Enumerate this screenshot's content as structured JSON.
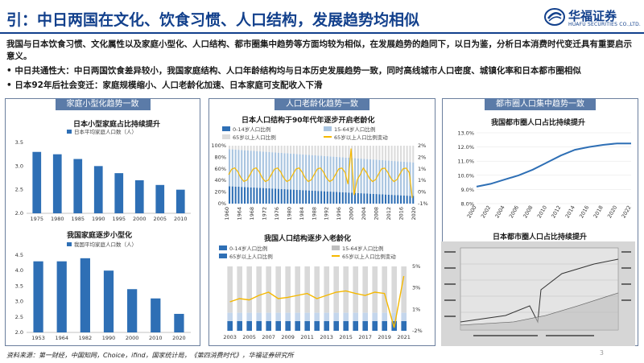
{
  "header": {
    "title": "引：中日两国在文化、饮食习惯、人口结构，发展趋势均相似",
    "logo_cn": "华福证券",
    "logo_en": "HUAFU SECURITIES CO.,LTD."
  },
  "intro": "我国与日本饮食习惯、文化属性以及家庭小型化、人口结构、都市圈集中趋势等方面均较为相似，在发展趋势的趋同下，以日为鉴，分析日本消费时代变迁具有重要启示意义。",
  "bullets": [
    "中日共通性大：中日两国饮食差异较小，我国家庭结构、人口年龄结构均与日本历史发展趋势一致，同时高线城市人口密度、城镇化率和日本都市圈相似",
    "日本92年后社会变迁：家庭规模缩小、人口老龄化加速、日本家庭可支配收入下滑"
  ],
  "panels": {
    "family": "家庭小型化趋势一致",
    "aging": "人口老龄化趋势一致",
    "metro": "都市圈人口集中趋势一致"
  },
  "chart_data": [
    {
      "type": "bar",
      "title": "日本小型家庭占比持续提升",
      "legend": "日本平均家庭人口数（人）",
      "categories": [
        "1975",
        "1980",
        "1985",
        "1990",
        "1995",
        "2000",
        "2005",
        "2010"
      ],
      "values": [
        3.3,
        3.25,
        3.15,
        3.0,
        2.85,
        2.7,
        2.6,
        2.5
      ],
      "ylim": [
        2.0,
        3.5
      ],
      "yticks": [
        "2.0",
        "2.5",
        "3.0",
        "3.5"
      ],
      "color": "#2e6fb5"
    },
    {
      "type": "bar",
      "title": "我国家庭逐步小型化",
      "legend": "我国平均家庭人口数（人）",
      "categories": [
        "1953",
        "1964",
        "1982",
        "1990",
        "2000",
        "2010",
        "2020"
      ],
      "values": [
        4.3,
        4.3,
        4.4,
        4.0,
        3.4,
        3.1,
        2.6
      ],
      "ylim": [
        2.0,
        4.5
      ],
      "yticks": [
        "2.0",
        "2.5",
        "3.0",
        "3.5",
        "4.0",
        "4.5"
      ],
      "color": "#2e6fb5"
    },
    {
      "type": "bar",
      "title": "日本人口结构于90年代年逐步开启老龄化",
      "legend": [
        "0-14岁人口比例",
        "15-64岁人口比例",
        "65岁以上人口比例",
        "65岁以上人口比例变动"
      ],
      "xticks": [
        "1960",
        "1964",
        "1968",
        "1972",
        "1976",
        "1980",
        "1984",
        "1988",
        "1992",
        "1996",
        "2000",
        "2004",
        "2008",
        "2012",
        "2016",
        "2020"
      ],
      "yticks_left": [
        "0%",
        "20%",
        "40%",
        "60%",
        "80%",
        "100%"
      ],
      "yticks_right": [
        "-1%",
        "0%",
        "1%",
        "1%",
        "2%",
        "2%"
      ],
      "colors": [
        "#2e6fb5",
        "#a8c4e0",
        "#dcdcdc",
        "#f5b800"
      ]
    },
    {
      "type": "bar",
      "title": "我国人口结构逐步入老龄化",
      "legend": [
        "0-14岁人口比例",
        "15-64岁人口比例",
        "65岁以上人口比例",
        "65岁以上人口比例变动"
      ],
      "categories": [
        "2003",
        "2005",
        "2007",
        "2009",
        "2011",
        "2013",
        "2015",
        "2017",
        "2019",
        "2021"
      ],
      "yticks_right": [
        "-2%",
        "1%",
        "3%",
        "5%"
      ],
      "colors": [
        "#2e6fb5",
        "#bfbfbf",
        "#2e6fb5",
        "#f5b800"
      ]
    },
    {
      "type": "line",
      "title": "我国都市圈人口占比持续提升",
      "x": [
        "2000",
        "2002",
        "2004",
        "2006",
        "2008",
        "2010",
        "2012",
        "2014",
        "2016",
        "2018",
        "2020",
        "2022"
      ],
      "y": [
        9.2,
        9.4,
        9.7,
        10.0,
        10.4,
        10.9,
        11.4,
        11.8,
        12.0,
        12.15,
        12.25,
        12.25
      ],
      "ylim": [
        8.0,
        13.0
      ],
      "yticks": [
        "8.0%",
        "9.0%",
        "10.0%",
        "11.0%",
        "12.0%",
        "13.0%"
      ],
      "color": "#2e6fb5"
    },
    {
      "type": "line",
      "title": "日本都市圈人口占比持续提升"
    }
  ],
  "footer": "资料来源：第一财经，中国知网，Choice，ifind，国家统计局，《第四消费时代》，华福证券研究所",
  "page_number": "3"
}
